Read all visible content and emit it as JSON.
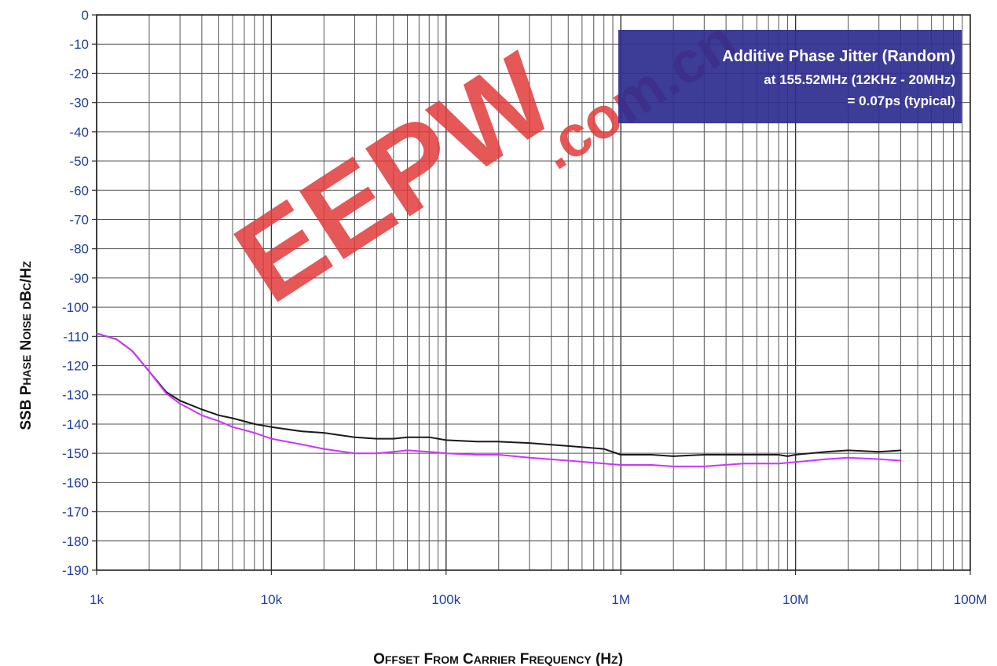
{
  "chart_data": {
    "type": "line",
    "xscale": "log",
    "xlim": [
      1000,
      100000000
    ],
    "ylim": [
      -190,
      0
    ],
    "grid": true,
    "xlabel": "Offset From Carrier Frequency (Hz)",
    "ylabel": "SSB Phase Noise dBc/Hz",
    "x_ticks": [
      {
        "value": 1000,
        "label": "1k"
      },
      {
        "value": 10000,
        "label": "10k"
      },
      {
        "value": 100000,
        "label": "100k"
      },
      {
        "value": 1000000,
        "label": "1M"
      },
      {
        "value": 10000000,
        "label": "10M"
      },
      {
        "value": 100000000,
        "label": "100M"
      }
    ],
    "y_ticks": [
      0,
      -10,
      -20,
      -30,
      -40,
      -50,
      -60,
      -70,
      -80,
      -90,
      -100,
      -110,
      -120,
      -130,
      -140,
      -150,
      -160,
      -170,
      -180,
      -190
    ],
    "series": [
      {
        "color": "#1a1a1a",
        "points": [
          [
            1000,
            -109
          ],
          [
            1300,
            -111
          ],
          [
            1600,
            -115
          ],
          [
            2000,
            -122
          ],
          [
            2500,
            -129
          ],
          [
            3000,
            -132
          ],
          [
            4000,
            -135
          ],
          [
            5000,
            -137
          ],
          [
            6000,
            -138
          ],
          [
            8000,
            -140
          ],
          [
            10000,
            -141
          ],
          [
            15000,
            -142.5
          ],
          [
            20000,
            -143
          ],
          [
            30000,
            -144.5
          ],
          [
            40000,
            -145
          ],
          [
            50000,
            -145
          ],
          [
            60000,
            -144.5
          ],
          [
            80000,
            -144.5
          ],
          [
            100000,
            -145.5
          ],
          [
            150000,
            -146
          ],
          [
            200000,
            -146
          ],
          [
            300000,
            -146.5
          ],
          [
            500000,
            -147.5
          ],
          [
            800000,
            -148.5
          ],
          [
            1000000,
            -150.5
          ],
          [
            1500000,
            -150.5
          ],
          [
            2000000,
            -151
          ],
          [
            3000000,
            -150.5
          ],
          [
            5000000,
            -150.5
          ],
          [
            8000000,
            -150.5
          ],
          [
            9000000,
            -151
          ],
          [
            10000000,
            -150.5
          ],
          [
            15000000,
            -149.5
          ],
          [
            20000000,
            -149
          ],
          [
            30000000,
            -149.5
          ],
          [
            40000000,
            -149
          ]
        ]
      },
      {
        "color": "#cc33ff",
        "points": [
          [
            1000,
            -109
          ],
          [
            1300,
            -111
          ],
          [
            1600,
            -115
          ],
          [
            2000,
            -122
          ],
          [
            2500,
            -129.5
          ],
          [
            3000,
            -133
          ],
          [
            4000,
            -137
          ],
          [
            5000,
            -139
          ],
          [
            6000,
            -141
          ],
          [
            8000,
            -143
          ],
          [
            10000,
            -145
          ],
          [
            15000,
            -147
          ],
          [
            20000,
            -148.5
          ],
          [
            30000,
            -150
          ],
          [
            40000,
            -150
          ],
          [
            50000,
            -149.5
          ],
          [
            60000,
            -149
          ],
          [
            80000,
            -149.5
          ],
          [
            100000,
            -150
          ],
          [
            150000,
            -150.5
          ],
          [
            200000,
            -150.5
          ],
          [
            300000,
            -151.5
          ],
          [
            500000,
            -152.5
          ],
          [
            800000,
            -153.5
          ],
          [
            1000000,
            -154
          ],
          [
            1500000,
            -154
          ],
          [
            2000000,
            -154.5
          ],
          [
            3000000,
            -154.5
          ],
          [
            5000000,
            -153.5
          ],
          [
            8000000,
            -153.5
          ],
          [
            10000000,
            -153
          ],
          [
            15000000,
            -152
          ],
          [
            20000000,
            -151.5
          ],
          [
            30000000,
            -152
          ],
          [
            40000000,
            -152.5
          ]
        ]
      }
    ],
    "annotation": {
      "line1": "Additive Phase Jitter (Random)",
      "line2": "at 155.52MHz (12KHz - 20MHz)",
      "line3": "= 0.07ps (typical)",
      "background": "#2e2d8f"
    },
    "watermark": {
      "text": "EEPW",
      "suffix": ".com.cn",
      "color": "#e23a3a"
    }
  }
}
